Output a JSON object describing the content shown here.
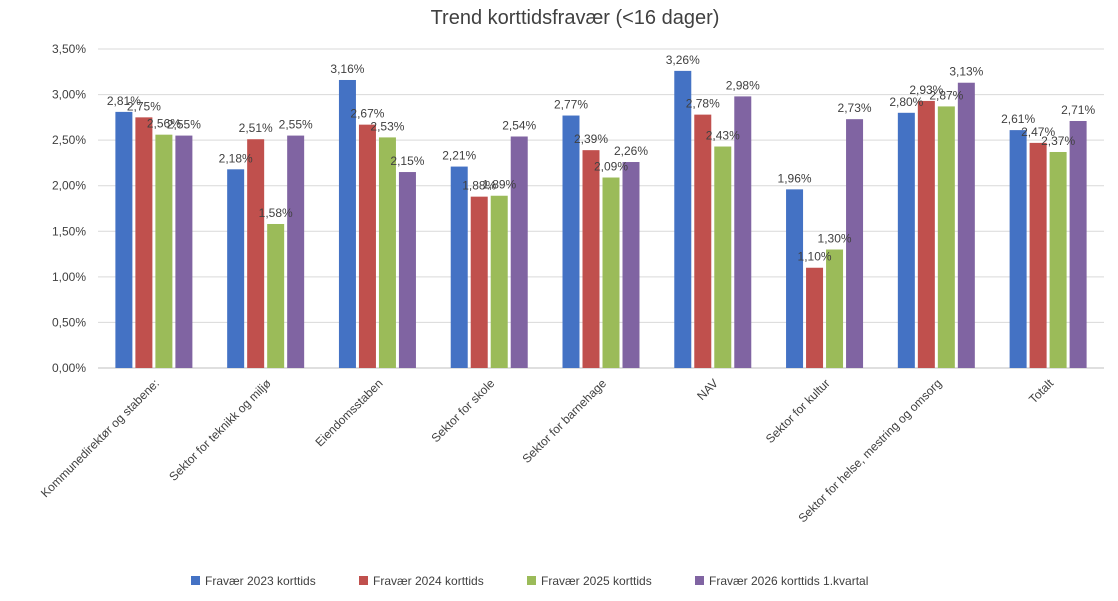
{
  "chart_data": {
    "type": "bar",
    "title": "Trend korttidsfravær (<16 dager)",
    "xlabel": "",
    "ylabel": "",
    "ylim": [
      0,
      3.5
    ],
    "y_ticks": [
      "0,00%",
      "0,50%",
      "1,00%",
      "1,50%",
      "2,00%",
      "2,50%",
      "3,00%",
      "3,50%"
    ],
    "grid": true,
    "legend_position": "bottom",
    "categories": [
      "Kommunedirektør og stabene:",
      "Sektor for teknikk og miljø",
      "Eiendomsstaben",
      "Sektor for skole",
      "Sektor for barnehage",
      "NAV",
      "Sektor for kultur",
      "Sektor for helse, mestring og omsorg",
      "Totalt"
    ],
    "series": [
      {
        "name": "Fravær 2023 korttids",
        "color": "#4472c4",
        "values": [
          2.81,
          2.18,
          3.16,
          2.21,
          2.77,
          3.26,
          1.96,
          2.8,
          2.61
        ],
        "labels": [
          "2,81%",
          "2,18%",
          "3,16%",
          "2,21%",
          "2,77%",
          "3,26%",
          "1,96%",
          "2,80%",
          "2,61%"
        ]
      },
      {
        "name": "Fravær 2024 korttids",
        "color": "#c0504d",
        "values": [
          2.75,
          2.51,
          2.67,
          1.88,
          2.39,
          2.78,
          1.1,
          2.93,
          2.47
        ],
        "labels": [
          "2,75%",
          "2,51%",
          "2,67%",
          "1,88%",
          "2,39%",
          "2,78%",
          "1,10%",
          "2,93%",
          "2,47%"
        ]
      },
      {
        "name": "Fravær 2025 korttids",
        "color": "#9bbb59",
        "values": [
          2.56,
          1.58,
          2.53,
          1.89,
          2.09,
          2.43,
          1.3,
          2.87,
          2.37
        ],
        "labels": [
          "2,56%",
          "1,58%",
          "2,53%",
          "1,89%",
          "2,09%",
          "2,43%",
          "1,30%",
          "2,87%",
          "2,37%"
        ]
      },
      {
        "name": "Fravær 2026 korttids 1.kvartal",
        "color": "#8064a2",
        "values": [
          2.55,
          2.55,
          2.15,
          2.54,
          2.26,
          2.98,
          2.73,
          3.13,
          2.71
        ],
        "labels": [
          "2,55%",
          "2,55%",
          "2,15%",
          "2,54%",
          "2,26%",
          "2,98%",
          "2,73%",
          "3,13%",
          "2,71%"
        ]
      }
    ]
  }
}
